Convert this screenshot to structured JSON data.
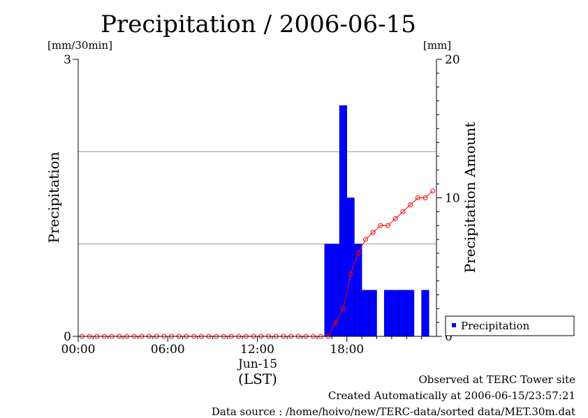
{
  "chart_data": {
    "type": "bar",
    "title": "Precipitation / 2006-06-15",
    "ylabel": "Precipitation",
    "y2label": "Precipitation Amount",
    "yunit": "[mm/30min]",
    "y2unit": "[mm]",
    "ylim": [
      0,
      3
    ],
    "y2lim": [
      0,
      20
    ],
    "yticks": [
      "0",
      "3"
    ],
    "y2ticks": [
      "0",
      "10",
      "20"
    ],
    "xticks": [
      "00:00",
      "06:00",
      "12:00",
      "18:00"
    ],
    "xdate": "Jun-15",
    "xzone": "(LST)",
    "grid": true,
    "legend_position": "bottom-right",
    "x_hours": [
      0.0,
      0.5,
      1.0,
      1.5,
      2.0,
      2.5,
      3.0,
      3.5,
      4.0,
      4.5,
      5.0,
      5.5,
      6.0,
      6.5,
      7.0,
      7.5,
      8.0,
      8.5,
      9.0,
      9.5,
      10.0,
      10.5,
      11.0,
      11.5,
      12.0,
      12.5,
      13.0,
      13.5,
      14.0,
      14.5,
      15.0,
      15.5,
      16.0,
      16.5,
      17.0,
      17.5,
      18.0,
      18.5,
      19.0,
      19.5,
      20.0,
      20.5,
      21.0,
      21.5,
      22.0,
      22.5,
      23.0,
      23.5
    ],
    "series": [
      {
        "name": "Precipitation",
        "kind": "bar",
        "axis": "left",
        "color": "#0000ff",
        "values": [
          0,
          0,
          0,
          0,
          0,
          0,
          0,
          0,
          0,
          0,
          0,
          0,
          0,
          0,
          0,
          0,
          0,
          0,
          0,
          0,
          0,
          0,
          0,
          0,
          0,
          0,
          0,
          0,
          0,
          0,
          0,
          0,
          0,
          1.0,
          1.0,
          2.5,
          1.5,
          1.0,
          0.5,
          0.5,
          0,
          0.5,
          0.5,
          0.5,
          0.5,
          0,
          0.5,
          0
        ]
      },
      {
        "kind": "line",
        "axis": "right",
        "color": "#ff0000",
        "values": [
          0,
          0,
          0,
          0,
          0,
          0,
          0,
          0,
          0,
          0,
          0,
          0,
          0,
          0,
          0,
          0,
          0,
          0,
          0,
          0,
          0,
          0,
          0,
          0,
          0,
          0,
          0,
          0,
          0,
          0,
          0,
          0,
          0,
          0,
          1.0,
          2.0,
          4.5,
          6.0,
          7.0,
          7.5,
          8.0,
          8.0,
          8.5,
          9.0,
          9.5,
          10.0,
          10.0,
          10.5
        ]
      }
    ]
  },
  "footer": {
    "observed": "Observed at TERC Tower site",
    "created": "Created Automatically at 2006-06-15/23:57:21",
    "source": "Data source : /home/hoivo/new/TERC-data/sorted  data/MET.30m.dat"
  }
}
